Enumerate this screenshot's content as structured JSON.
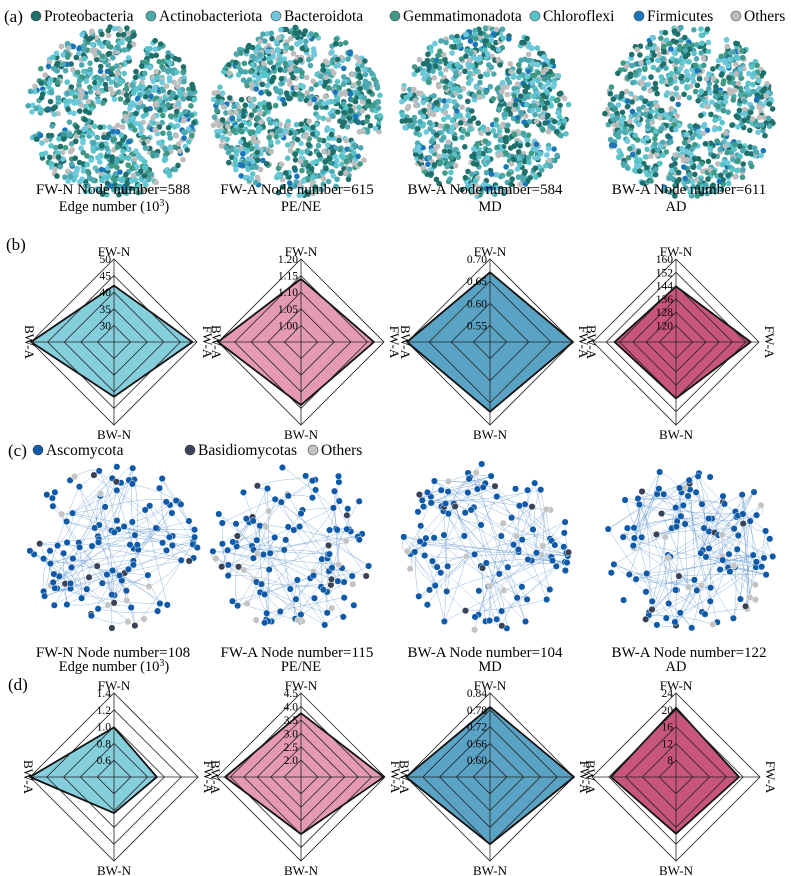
{
  "colors": {
    "proteobacteria": "#1f6f6a",
    "actinobacteriota": "#4da8b0",
    "bacteroidota": "#6ec8dc",
    "gemmatimonadota": "#3e9a86",
    "chloroflexi": "#58c3c8",
    "firmicutes": "#1a76b8",
    "others_a": "#bdbdbd",
    "ascomycota": "#0f5aa8",
    "basidiomycotas": "#3a4257",
    "others_c": "#c4c4c4",
    "edge_c": "#3f7fc8",
    "radar_cyan": "#85cfdc",
    "radar_pink": "#e59ab4",
    "radar_blue": "#5aa3c4",
    "radar_maroon": "#c8567a"
  },
  "panel_a": {
    "label": "(a)",
    "legend": [
      {
        "name": "Proteobacteria",
        "color_key": "proteobacteria"
      },
      {
        "name": "Actinobacteriota",
        "color_key": "actinobacteriota"
      },
      {
        "name": "Bacteroidota",
        "color_key": "bacteroidota"
      },
      {
        "name": "Gemmatimonadota",
        "color_key": "gemmatimonadota"
      },
      {
        "name": "Chloroflexi",
        "color_key": "chloroflexi"
      },
      {
        "name": "Firmicutes",
        "color_key": "firmicutes"
      },
      {
        "name": "Others",
        "color_key": "others_a"
      }
    ],
    "networks": [
      {
        "caption": "FW-N Node number=588",
        "sectors": 3
      },
      {
        "caption": "FW-A Node number=615",
        "sectors": 4
      },
      {
        "caption": "BW-A Node number=584",
        "sectors": 4
      },
      {
        "caption": "BW-A Node number=611",
        "sectors": 4
      }
    ]
  },
  "panel_b": {
    "label": "(b)",
    "radars": [
      {
        "title": "Edge number (10",
        "title_sup": "3",
        "title_end": ")",
        "color_key": "radar_cyan",
        "ticks": [
          "30",
          "35",
          "40",
          "45",
          "50"
        ],
        "tick_values": [
          30,
          35,
          40,
          45,
          50
        ],
        "values": {
          "FW-N": 42,
          "FW-A": 48.6,
          "BW-N": 41.5,
          "BW-A": 50
        }
      },
      {
        "title": "PE/NE",
        "color_key": "radar_pink",
        "ticks": [
          "1.00",
          "1.05",
          "1.10",
          "1.15",
          "1.20"
        ],
        "tick_values": [
          1.0,
          1.05,
          1.1,
          1.15,
          1.2
        ],
        "values": {
          "FW-N": 1.14,
          "FW-A": 1.17,
          "BW-N": 1.14,
          "BW-A": 1.2
        }
      },
      {
        "title": "MD",
        "color_key": "radar_blue",
        "ticks": [
          "0.55",
          "0.60",
          "0.65",
          "0.70"
        ],
        "tick_values": [
          0.55,
          0.6,
          0.65,
          0.7
        ],
        "values": {
          "FW-N": 0.67,
          "FW-A": 0.7,
          "BW-N": 0.67,
          "BW-A": 0.7
        }
      },
      {
        "title": "AD",
        "color_key": "radar_maroon",
        "ticks": [
          "120",
          "128",
          "136",
          "144",
          "152",
          "160"
        ],
        "tick_values": [
          120,
          128,
          136,
          144,
          152,
          160
        ],
        "values": {
          "FW-N": 143.5,
          "FW-A": 155,
          "BW-N": 144,
          "BW-A": 147
        }
      }
    ]
  },
  "panel_c": {
    "label": "(c)",
    "legend": [
      {
        "name": "Ascomycota",
        "color_key": "ascomycota"
      },
      {
        "name": "Basidiomycotas",
        "color_key": "basidiomycotas"
      },
      {
        "name": "Others",
        "color_key": "others_c"
      }
    ],
    "networks": [
      {
        "caption": "FW-N Node number=108",
        "sectors": 4
      },
      {
        "caption": "FW-A Node number=115",
        "sectors": 5
      },
      {
        "caption": "BW-A Node number=104",
        "sectors": 4
      },
      {
        "caption": "BW-A  Node number=122",
        "sectors": 3
      }
    ]
  },
  "panel_d": {
    "label": "(d)",
    "radars": [
      {
        "title": "Edge number (10",
        "title_sup": "3",
        "title_end": ")",
        "color_key": "radar_cyan",
        "ticks": [
          "0.6",
          "0.8",
          "1.0",
          "1.2",
          "1.4"
        ],
        "tick_values": [
          0.6,
          0.8,
          1.0,
          1.2,
          1.4
        ],
        "values": {
          "FW-N": 0.99,
          "FW-A": 0.91,
          "BW-N": 0.83,
          "BW-A": 1.4
        }
      },
      {
        "title": "PE/NE",
        "color_key": "radar_pink",
        "ticks": [
          "2.0",
          "2.5",
          "3.0",
          "3.5",
          "4.0",
          "4.5"
        ],
        "tick_values": [
          2.0,
          2.5,
          3.0,
          3.5,
          4.0,
          4.5
        ],
        "values": {
          "FW-N": 3.75,
          "FW-A": 4.45,
          "BW-N": 3.5,
          "BW-A": 4.2
        }
      },
      {
        "title": "MD",
        "color_key": "radar_blue",
        "ticks": [
          "0.60",
          "0.66",
          "0.72",
          "0.78",
          "0.84"
        ],
        "tick_values": [
          0.6,
          0.66,
          0.72,
          0.78,
          0.84
        ],
        "values": {
          "FW-N": 0.79,
          "FW-A": 0.84,
          "BW-N": 0.78,
          "BW-A": 0.84
        }
      },
      {
        "title": "AD",
        "color_key": "radar_maroon",
        "ticks": [
          "8",
          "12",
          "16",
          "20",
          "24"
        ],
        "tick_values": [
          8,
          12,
          16,
          20,
          24
        ],
        "values": {
          "FW-N": 20.5,
          "FW-A": 19,
          "BW-N": 17.5,
          "BW-A": 19.5
        }
      }
    ]
  },
  "axes": {
    "top": "FW-N",
    "right": "FW-A",
    "bottom": "BW-N",
    "left": "BW-A"
  }
}
